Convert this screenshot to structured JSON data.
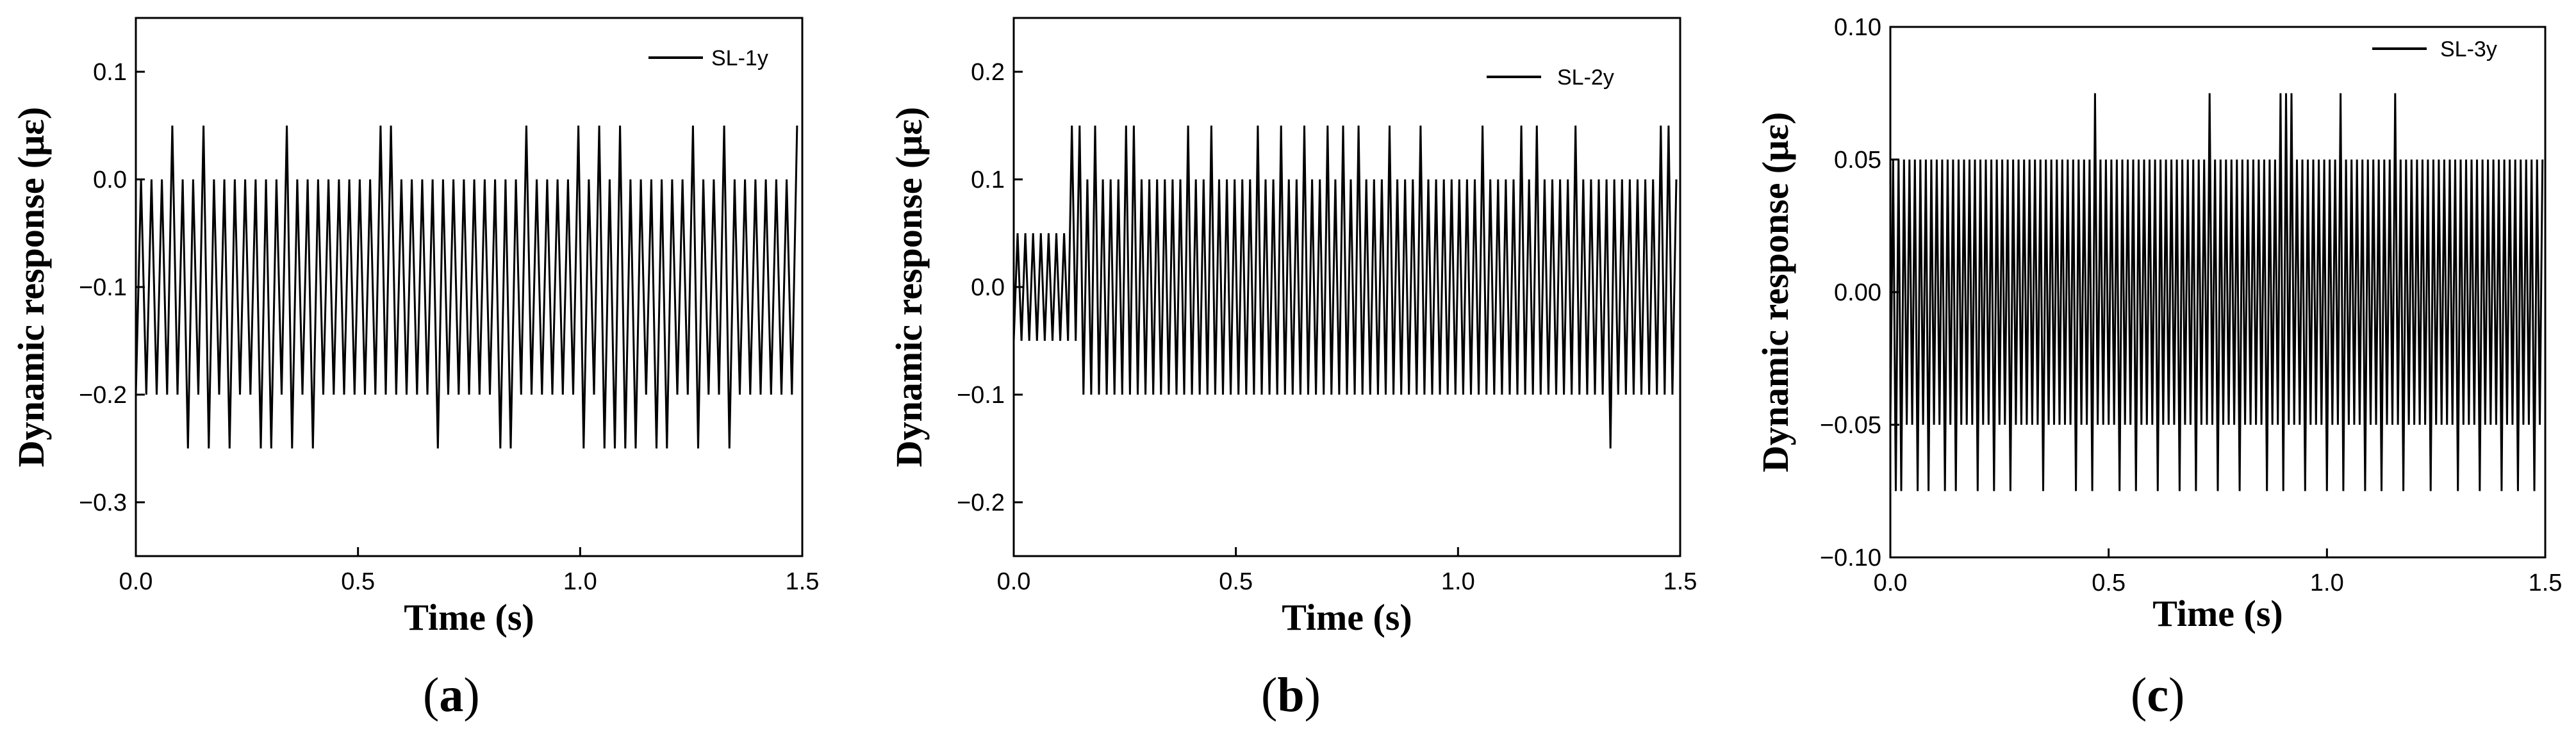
{
  "chart_data": [
    {
      "type": "line",
      "panel_label": "a",
      "xlabel": "Time (s)",
      "ylabel": "Dynamic response (με)",
      "xlim": [
        0,
        1.5
      ],
      "ylim": [
        -0.35,
        0.15
      ],
      "xticks": [
        0.0,
        0.5,
        1.0,
        1.5
      ],
      "xtick_labels": [
        "0.0",
        "0.5",
        "1.0",
        "1.5"
      ],
      "yticks": [
        -0.3,
        -0.2,
        -0.1,
        0.0,
        0.1
      ],
      "ytick_labels": [
        "−0.3",
        "−0.2",
        "−0.1",
        "0.0",
        "0.1"
      ],
      "grid": false,
      "legend_position": "top-right",
      "series": [
        {
          "name": "SL-1y",
          "color": "#000000",
          "x_start": 0.0,
          "x_end": 1.5,
          "cycles": 64,
          "high": 0.0,
          "low": -0.2,
          "spike_high": 0.05,
          "spike_low": -0.25,
          "spike_high_at": [
            0.08,
            0.15,
            0.33,
            0.55,
            0.57,
            0.87,
            0.99,
            1.04,
            1.09,
            1.25,
            1.32,
            1.48
          ],
          "spike_low_at": [
            0.12,
            0.16,
            0.22,
            0.29,
            0.31,
            0.35,
            0.4,
            0.67,
            0.81,
            0.85,
            1.0,
            1.06,
            1.09,
            1.13,
            1.17,
            1.2,
            1.26,
            1.34,
            1.5
          ]
        }
      ]
    },
    {
      "type": "line",
      "panel_label": "b",
      "xlabel": "Time (s)",
      "ylabel": "Dynamic response (με)",
      "xlim": [
        0,
        1.5
      ],
      "ylim": [
        -0.25,
        0.25
      ],
      "xticks": [
        0.0,
        0.5,
        1.0,
        1.5
      ],
      "xtick_labels": [
        "0.0",
        "0.5",
        "1.0",
        "1.5"
      ],
      "yticks": [
        -0.2,
        -0.1,
        0.0,
        0.1,
        0.2
      ],
      "ytick_labels": [
        "−0.2",
        "−0.1",
        "0.0",
        "0.1",
        "0.2"
      ],
      "grid": false,
      "legend_position": "top-right",
      "series": [
        {
          "name": "SL-2y",
          "color": "#000000",
          "x_start": 0.0,
          "x_end": 1.5,
          "cycles": 86,
          "high": 0.1,
          "low": -0.1,
          "start_window": [
            0.0,
            0.14
          ],
          "start_high": 0.05,
          "start_low": -0.05,
          "spike_high": 0.15,
          "spike_low": -0.15,
          "spike_high_at": [
            0.14,
            0.19,
            0.26,
            0.27,
            0.4,
            0.45,
            0.55,
            0.6,
            0.65,
            0.7,
            0.74,
            0.77,
            0.85,
            0.91,
            1.06,
            1.14,
            1.18,
            1.27,
            1.45,
            1.47
          ],
          "spike_low_at": [
            1.35
          ]
        }
      ]
    },
    {
      "type": "line",
      "panel_label": "c",
      "xlabel": "Time (s)",
      "ylabel": "Dynamic response (με)",
      "xlim": [
        0,
        1.5
      ],
      "ylim": [
        -0.1,
        0.1
      ],
      "xticks": [
        0.0,
        0.5,
        1.0,
        1.5
      ],
      "xtick_labels": [
        "0.0",
        "0.5",
        "1.0",
        "1.5"
      ],
      "yticks": [
        -0.1,
        -0.05,
        0.0,
        0.05,
        0.1
      ],
      "ytick_labels": [
        "−0.10",
        "−0.05",
        "0.00",
        "0.05",
        "0.10"
      ],
      "grid": false,
      "legend_position": "top-right",
      "series": [
        {
          "name": "SL-3y",
          "color": "#000000",
          "x_start": 0.0,
          "x_end": 1.5,
          "cycles": 120,
          "high": 0.05,
          "low": -0.05,
          "spike_high": 0.075,
          "spike_low": -0.075,
          "spike_high_at": [
            0.47,
            0.73,
            0.9,
            0.92,
            1.03,
            1.16
          ],
          "spike_low_at": [
            0.01,
            0.03,
            0.06,
            0.09,
            0.12,
            0.15,
            0.2,
            0.24,
            0.27,
            0.35,
            0.42,
            0.46,
            0.52,
            0.56,
            0.61,
            0.66,
            0.7,
            0.75,
            0.8,
            0.86,
            0.9,
            0.95,
            1.0,
            1.04,
            1.09,
            1.13,
            1.18,
            1.24,
            1.3,
            1.35,
            1.4,
            1.44,
            1.48
          ]
        }
      ]
    }
  ]
}
